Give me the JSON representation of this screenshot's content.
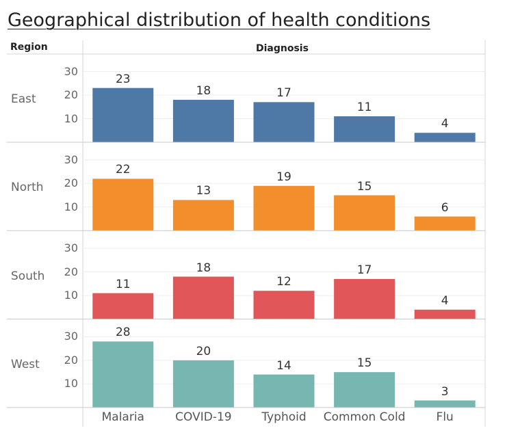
{
  "title": "Geographical distribution of health conditions",
  "header": {
    "row_header": "Region",
    "col_header": "Diagnosis"
  },
  "colors": {
    "East": "#4e79a7",
    "North": "#f28e2b",
    "South": "#e15759",
    "West": "#76b7b2"
  },
  "chart_data": {
    "type": "bar",
    "title": "Geographical distribution of health conditions",
    "row_dimension": "Region",
    "column_dimension": "Diagnosis",
    "categories": [
      "Malaria",
      "COVID-19",
      "Typhoid",
      "Common Cold",
      "Flu"
    ],
    "series": [
      {
        "name": "East",
        "values": [
          23,
          18,
          17,
          11,
          4
        ]
      },
      {
        "name": "North",
        "values": [
          22,
          13,
          19,
          15,
          6
        ]
      },
      {
        "name": "South",
        "values": [
          11,
          18,
          12,
          17,
          4
        ]
      },
      {
        "name": "West",
        "values": [
          28,
          20,
          14,
          15,
          3
        ]
      }
    ],
    "ylim": [
      0,
      33
    ],
    "yticks": [
      10,
      20,
      30
    ],
    "grid": true
  }
}
